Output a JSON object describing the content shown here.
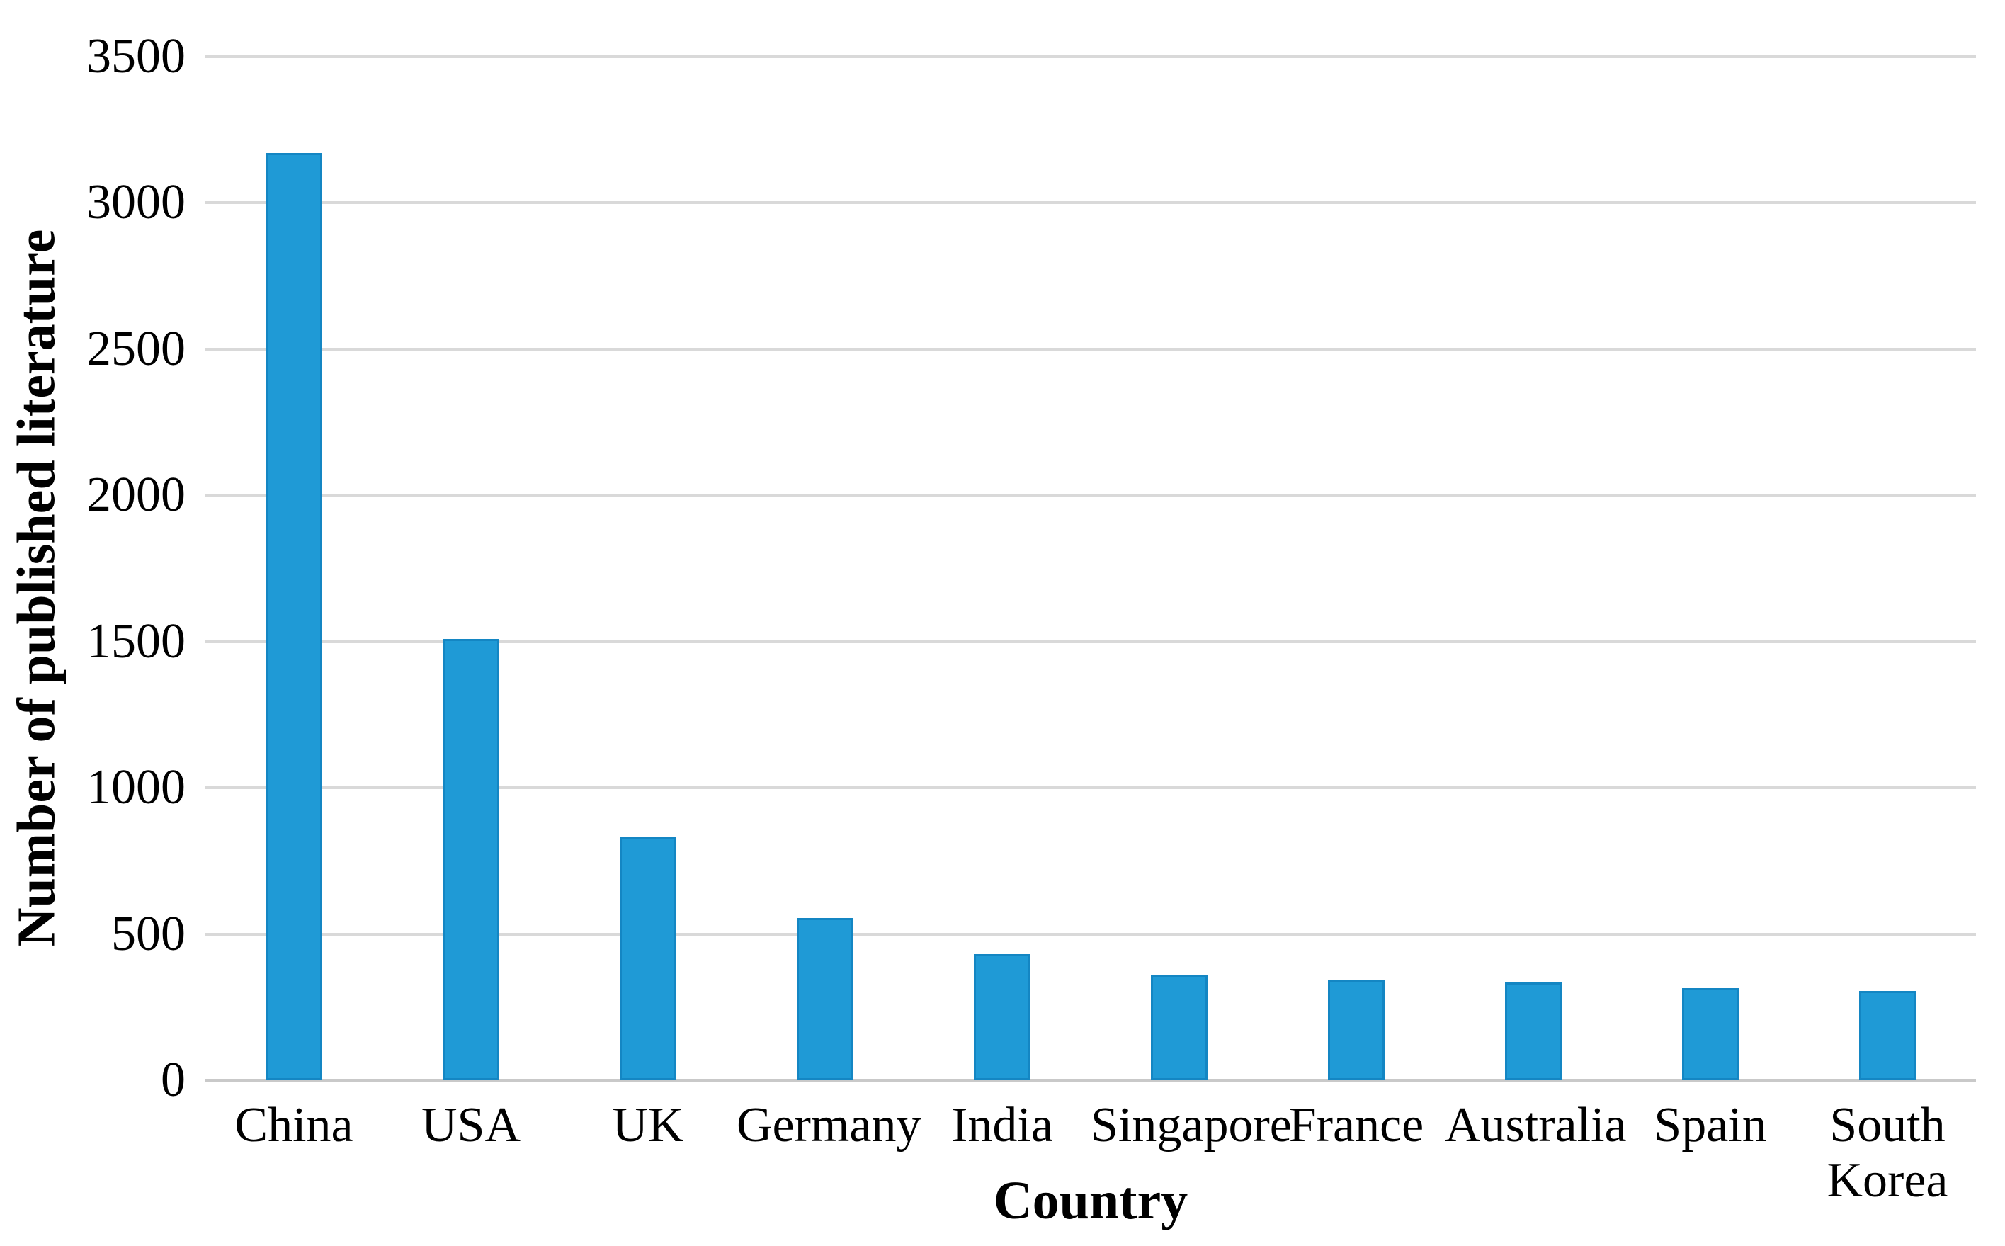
{
  "chart_data": {
    "type": "bar",
    "title": "",
    "xlabel": "Country",
    "ylabel": "Number of published literature",
    "categories": [
      "China",
      "USA",
      "UK",
      "Germany",
      "India",
      "Singapore",
      "France",
      "Australia",
      "Spain",
      "South Korea"
    ],
    "values": [
      3170,
      1510,
      830,
      555,
      430,
      360,
      345,
      335,
      315,
      305
    ],
    "ylim": [
      0,
      3500
    ],
    "yticks": [
      0,
      500,
      1000,
      1500,
      2000,
      2500,
      3000,
      3500
    ],
    "grid": "horizontal",
    "legend": "none",
    "colors": {
      "bar_fill": "#1f9ad6",
      "bar_edge": "#1486c3",
      "gridline": "#d9d9d9",
      "baseline": "#c9c9c9",
      "text": "#000000",
      "background": "#ffffff"
    }
  }
}
